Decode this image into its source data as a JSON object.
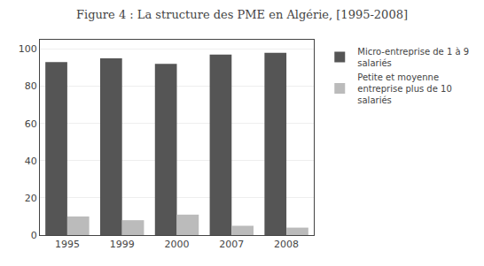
{
  "chart_data": {
    "type": "bar",
    "title": "Figure 4 : La structure des PME en Algérie, [1995-2008]",
    "categories": [
      "1995",
      "1999",
      "2000",
      "2007",
      "2008"
    ],
    "series": [
      {
        "name": "Micro-entreprise de 1 à 9\nsalariés",
        "color": "#555555",
        "values": [
          93,
          95,
          92,
          97,
          98
        ]
      },
      {
        "name": "Petite et moyenne\nentreprise plus de 10\nsalariés",
        "color": "#bbbbbb",
        "values": [
          10,
          8,
          11,
          5,
          4
        ]
      }
    ],
    "ylim": [
      0,
      105
    ],
    "yticks": [
      0,
      20,
      40,
      60,
      80,
      100
    ],
    "grid": true,
    "legend": "right"
  }
}
